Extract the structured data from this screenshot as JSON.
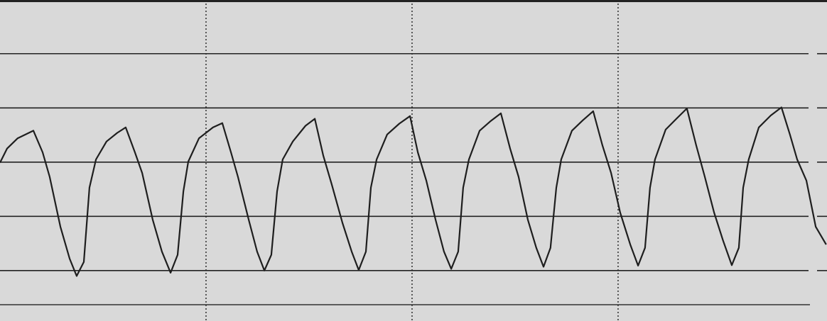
{
  "chart_data": {
    "type": "line",
    "x": [
      0,
      0.034,
      0.086,
      0.162,
      0.207,
      0.241,
      0.293,
      0.338,
      0.372,
      0.407,
      0.434,
      0.466,
      0.517,
      0.569,
      0.61,
      0.655,
      0.69,
      0.741,
      0.786,
      0.828,
      0.862,
      0.89,
      0.914,
      0.966,
      1.034,
      1.079,
      1.121,
      1.155,
      1.207,
      1.248,
      1.283,
      1.317,
      1.345,
      1.372,
      1.421,
      1.483,
      1.528,
      1.569,
      1.61,
      1.662,
      1.707,
      1.741,
      1.776,
      1.8,
      1.828,
      1.879,
      1.938,
      1.99,
      2.028,
      2.069,
      2.114,
      2.155,
      2.19,
      2.224,
      2.248,
      2.276,
      2.328,
      2.379,
      2.431,
      2.476,
      2.517,
      2.562,
      2.603,
      2.638,
      2.672,
      2.7,
      2.724,
      2.776,
      2.828,
      2.879,
      2.924,
      2.966,
      3.01,
      3.059,
      3.097,
      3.131,
      3.155,
      3.179,
      3.231,
      3.283,
      3.334,
      3.379,
      3.421,
      3.466,
      3.51,
      3.552,
      3.586,
      3.607,
      3.634,
      3.683,
      3.741,
      3.793,
      3.834,
      3.869,
      3.914,
      3.959,
      4.01
    ],
    "series": [
      {
        "color": "#1e1e1e",
        "values": [
          1.99,
          2.25,
          2.44,
          2.58,
          2.18,
          1.73,
          0.81,
          0.22,
          -0.1,
          0.16,
          1.53,
          2.05,
          2.38,
          2.54,
          2.64,
          2.18,
          1.8,
          0.94,
          0.35,
          -0.04,
          0.29,
          1.46,
          2.01,
          2.44,
          2.64,
          2.72,
          2.18,
          1.73,
          0.94,
          0.35,
          0,
          0.29,
          1.46,
          2.05,
          2.38,
          2.67,
          2.8,
          2.12,
          1.59,
          0.88,
          0.35,
          0.01,
          0.35,
          1.53,
          2.05,
          2.51,
          2.71,
          2.85,
          2.18,
          1.66,
          0.94,
          0.35,
          0.03,
          0.35,
          1.53,
          2.05,
          2.58,
          2.75,
          2.9,
          2.25,
          1.73,
          0.94,
          0.42,
          0.07,
          0.42,
          1.53,
          2.05,
          2.58,
          2.77,
          2.94,
          2.31,
          1.8,
          1.07,
          0.48,
          0.09,
          0.42,
          1.53,
          2.05,
          2.6,
          2.8,
          2.99,
          2.31,
          1.73,
          1.07,
          0.55,
          0.1,
          0.42,
          1.53,
          2.05,
          2.64,
          2.86,
          3.01,
          2.51,
          2.05,
          1.66,
          0.81,
          0.48
        ]
      }
    ],
    "xlim": [
      0,
      4.014
    ],
    "xticks": [
      1,
      2,
      3
    ],
    "ylim": [
      -0.93,
      4.99
    ],
    "yticks": [
      0,
      1,
      2,
      3,
      4
    ],
    "grid": true
  }
}
